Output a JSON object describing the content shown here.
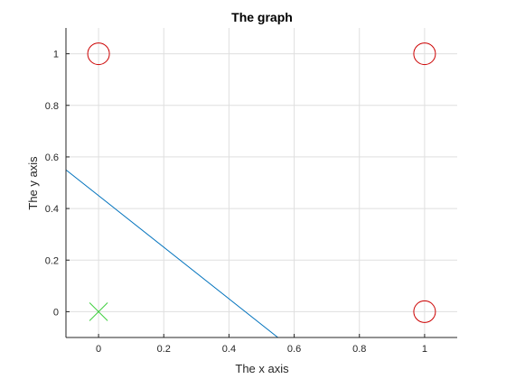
{
  "chart_data": {
    "type": "scatter",
    "title": "The graph",
    "xlabel": "The x axis",
    "ylabel": "The y axis",
    "xlim": [
      -0.1,
      1.1
    ],
    "ylim": [
      -0.1,
      1.1
    ],
    "xticks": [
      0,
      0.2,
      0.4,
      0.6,
      0.8,
      1
    ],
    "yticks": [
      0,
      0.2,
      0.4,
      0.6,
      0.8,
      1
    ],
    "xtick_labels": [
      "0",
      "0.2",
      "0.4",
      "0.6",
      "0.8",
      "1"
    ],
    "ytick_labels": [
      "0",
      "0.2",
      "0.4",
      "0.6",
      "0.8",
      "1"
    ],
    "grid": true,
    "series": [
      {
        "marker": "circle",
        "color": "#cc0000",
        "points": [
          [
            0,
            1
          ],
          [
            1,
            1
          ],
          [
            1,
            0
          ]
        ]
      },
      {
        "marker": "x",
        "color": "#33cc33",
        "points": [
          [
            0,
            0
          ]
        ]
      },
      {
        "marker": "line",
        "color": "#0072bd",
        "points": [
          [
            -0.1,
            0.55
          ],
          [
            0.55,
            -0.1
          ]
        ]
      }
    ]
  }
}
